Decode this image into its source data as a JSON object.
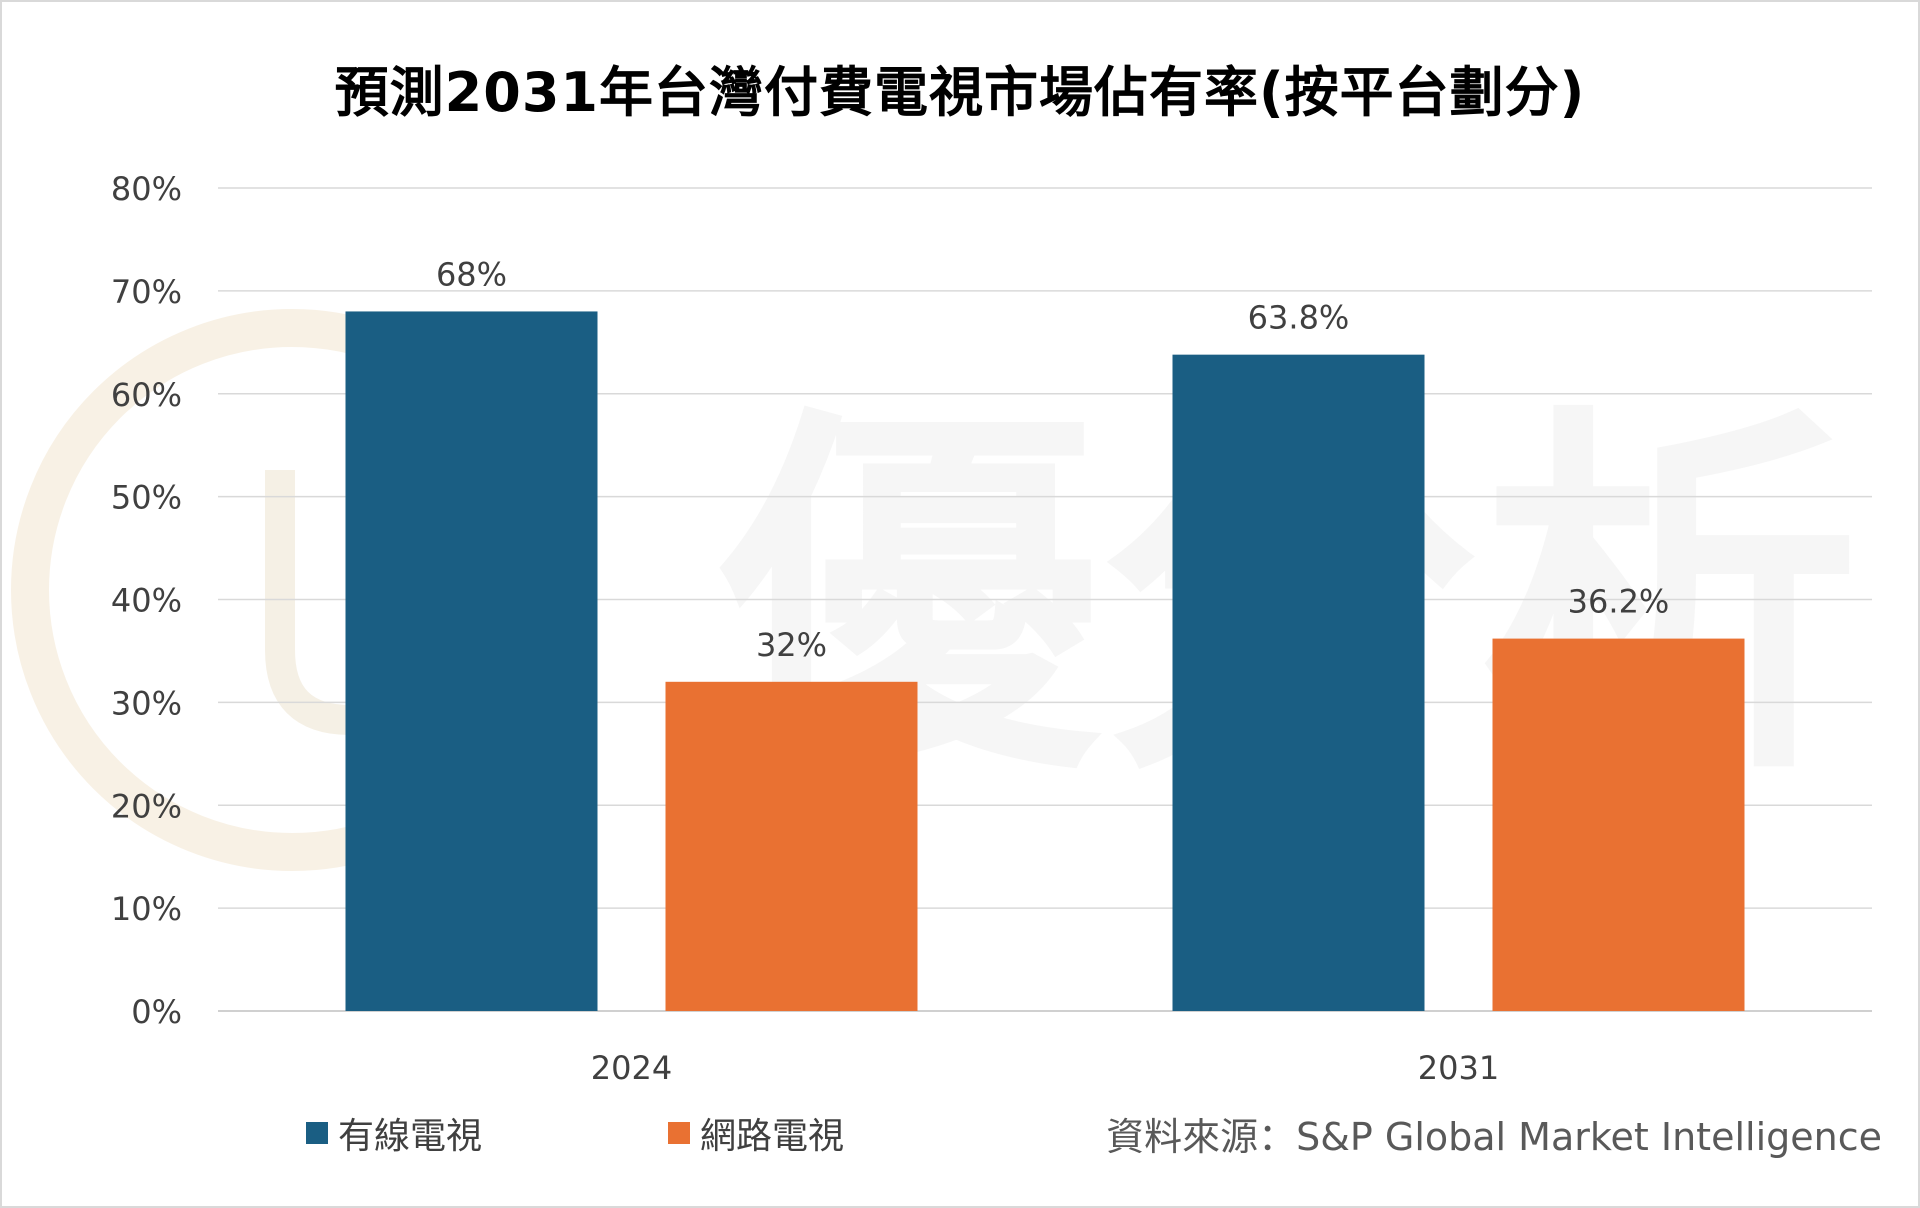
{
  "chart_data": {
    "type": "bar",
    "title": "預測2031年台灣付費電視市場佔有率(按平台劃分)",
    "categories": [
      "2024",
      "2031"
    ],
    "series": [
      {
        "name": "有線電視",
        "values": [
          68,
          63.8
        ],
        "labels": [
          "68%",
          "63.8%"
        ],
        "color": "#1a5e83"
      },
      {
        "name": "網路電視",
        "values": [
          32,
          36.2
        ],
        "labels": [
          "32%",
          "36.2%"
        ],
        "color": "#e97132"
      }
    ],
    "ylim": [
      0,
      80
    ],
    "yticks": [
      "0%",
      "10%",
      "20%",
      "30%",
      "40%",
      "50%",
      "60%",
      "70%",
      "80%"
    ],
    "xlabel": "",
    "ylabel": "",
    "grid": true,
    "legend_position": "bottom-left"
  },
  "source": "資料來源：S&P Global Market Intelligence",
  "watermark_text": "優分析"
}
